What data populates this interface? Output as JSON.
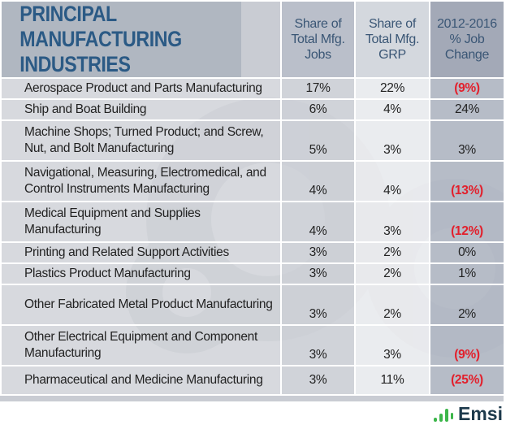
{
  "chart_data": {
    "type": "table",
    "title": "PRINCIPAL MANUFACTURING INDUSTRIES",
    "columns": [
      "Share of Total Mfg. Jobs",
      "Share of Total Mfg. GRP",
      "2012-2016 % Job Change"
    ],
    "rows": [
      {
        "industry": "Aerospace Product and Parts Manufacturing",
        "jobs": "17%",
        "grp": "22%",
        "change": "(9%)",
        "negative": true
      },
      {
        "industry": "Ship and Boat Building",
        "jobs": "6%",
        "grp": "4%",
        "change": "24%",
        "negative": false
      },
      {
        "industry": "Machine Shops; Turned Product; and Screw, Nut, and Bolt Manufacturing",
        "jobs": "5%",
        "grp": "3%",
        "change": "3%",
        "negative": false
      },
      {
        "industry": "Navigational, Measuring, Electromedical, and Control Instruments Manufacturing",
        "jobs": "4%",
        "grp": "4%",
        "change": "(13%)",
        "negative": true
      },
      {
        "industry": "Medical Equipment and Supplies Manufacturing",
        "jobs": "4%",
        "grp": "3%",
        "change": "(12%)",
        "negative": true
      },
      {
        "industry": "Printing and Related Support Activities",
        "jobs": "3%",
        "grp": "2%",
        "change": "0%",
        "negative": false
      },
      {
        "industry": "Plastics Product Manufacturing",
        "jobs": "3%",
        "grp": "2%",
        "change": "1%",
        "negative": false
      },
      {
        "industry": "Other Fabricated Metal Product Manufacturing",
        "jobs": "3%",
        "grp": "2%",
        "change": "2%",
        "negative": false
      },
      {
        "industry": "Other Electrical Equipment and Component Manufacturing",
        "jobs": "3%",
        "grp": "3%",
        "change": "(9%)",
        "negative": true
      },
      {
        "industry": "Pharmaceutical and Medicine Manufacturing",
        "jobs": "3%",
        "grp": "11%",
        "change": "(25%)",
        "negative": true
      }
    ]
  },
  "double_line_rows": [
    2,
    3,
    4,
    7,
    8
  ],
  "logo": {
    "text": "Emsi",
    "icon": "bar-chart-icon",
    "color": "#3cb64a"
  },
  "colors": {
    "title": "#2b5a85",
    "negative": "#e2202c"
  }
}
